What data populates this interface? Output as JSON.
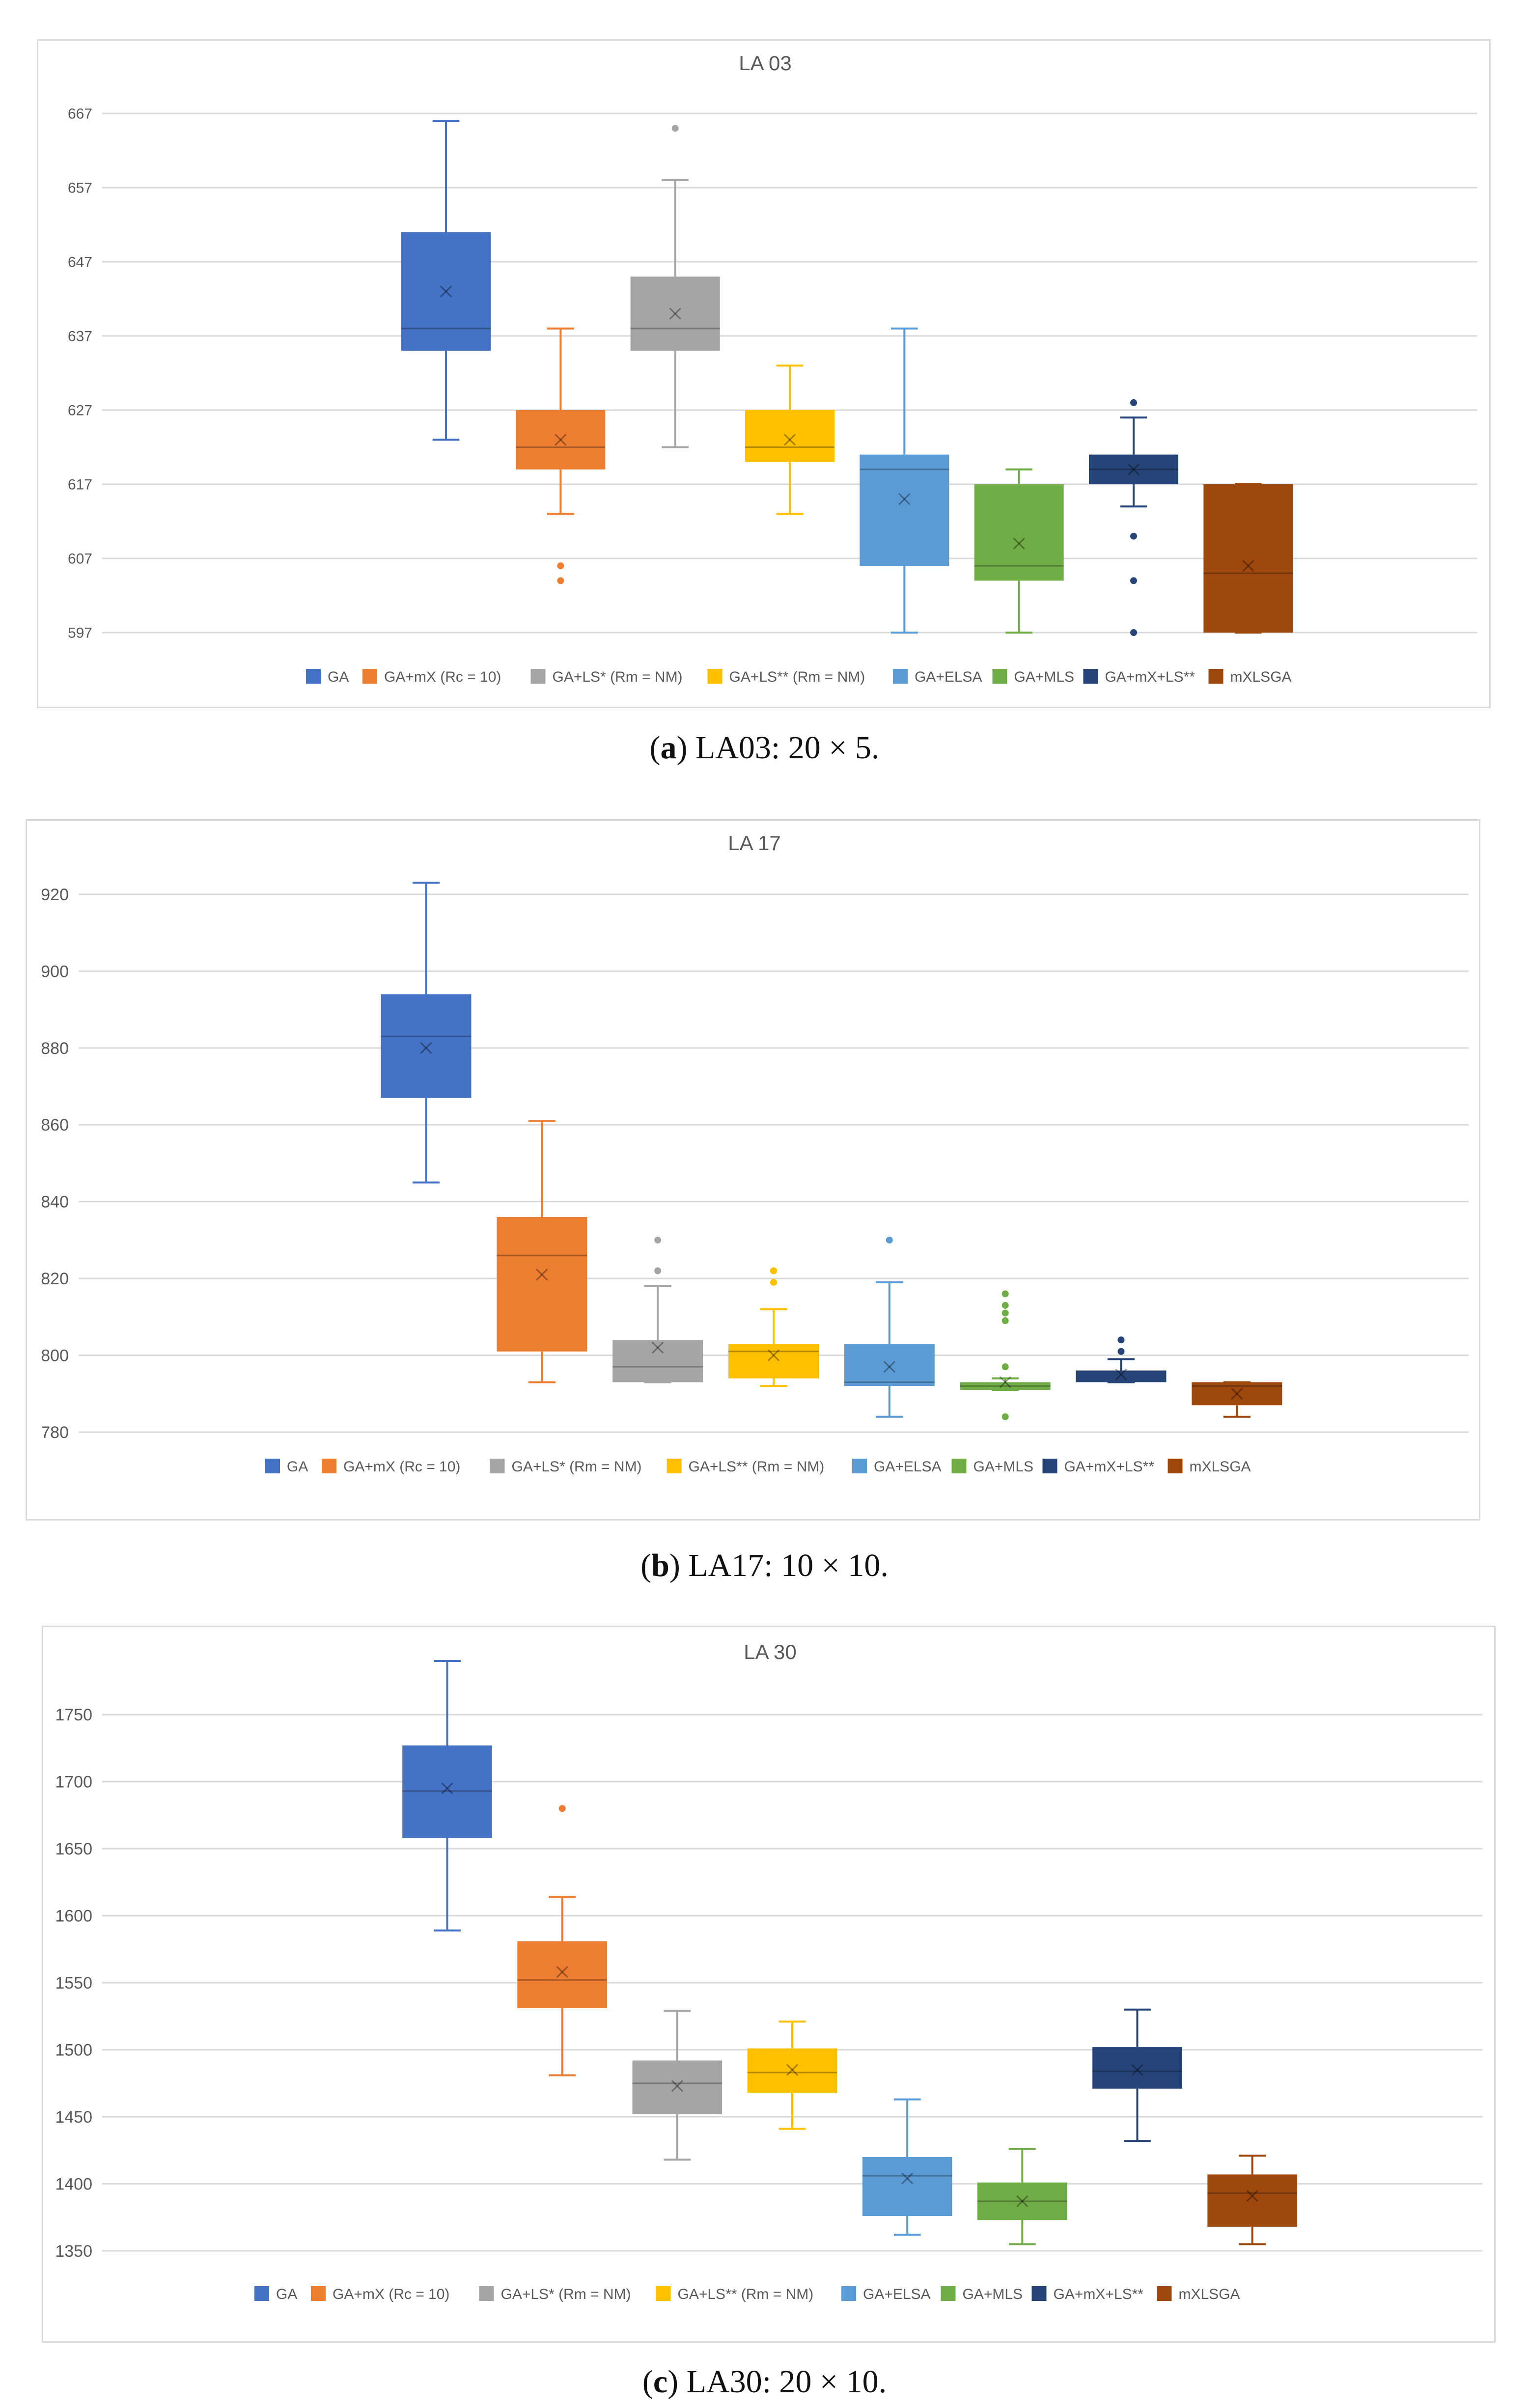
{
  "colors": {
    "GA": "#4472c4",
    "GA+mX": "#ed7d31",
    "GA+LS*": "#a5a5a5",
    "GA+LS**": "#ffc000",
    "GA+ELSA": "#5b9bd5",
    "GA+MLS": "#70ad47",
    "GA+mX+LS**": "#264478",
    "mXLSGA": "#9e480e",
    "grid": "#d9d9d9",
    "text": "#595959"
  },
  "legend_labels": [
    "GA",
    "GA+mX (Rc = 10)",
    "GA+LS* (Rm = NM)",
    "GA+LS** (Rm = NM)",
    "GA+ELSA",
    "GA+MLS",
    "GA+mX+LS**",
    "mXLSGA"
  ],
  "chart_data": [
    {
      "type": "box",
      "title": "LA 03",
      "caption": {
        "letter": "a",
        "text": "LA03: 20 × 5."
      },
      "ylim": [
        597,
        667
      ],
      "yticks": [
        597,
        607,
        617,
        627,
        637,
        647,
        657,
        667
      ],
      "series": [
        {
          "name": "GA",
          "min": 623,
          "q1": 635,
          "median": 638,
          "q3": 651,
          "max": 666,
          "mean": 643,
          "outliers": []
        },
        {
          "name": "GA+mX (Rc = 10)",
          "min": 613,
          "q1": 619,
          "median": 622,
          "q3": 627,
          "max": 638,
          "mean": 623,
          "outliers": [
            606,
            604
          ]
        },
        {
          "name": "GA+LS* (Rm = NM)",
          "min": 622,
          "q1": 635,
          "median": 638,
          "q3": 645,
          "max": 658,
          "mean": 640,
          "outliers": [
            665
          ]
        },
        {
          "name": "GA+LS** (Rm = NM)",
          "min": 613,
          "q1": 620,
          "median": 622,
          "q3": 627,
          "max": 633,
          "mean": 623,
          "outliers": []
        },
        {
          "name": "GA+ELSA",
          "min": 597,
          "q1": 606,
          "median": 619,
          "q3": 621,
          "max": 638,
          "mean": 615,
          "outliers": []
        },
        {
          "name": "GA+MLS",
          "min": 597,
          "q1": 604,
          "median": 606,
          "q3": 617,
          "max": 619,
          "mean": 609,
          "outliers": []
        },
        {
          "name": "GA+mX+LS**",
          "min": 614,
          "q1": 617,
          "median": 619,
          "q3": 621,
          "max": 626,
          "mean": 619,
          "outliers": [
            628,
            610,
            604,
            597
          ]
        },
        {
          "name": "mXLSGA",
          "min": 597,
          "q1": 597,
          "median": 605,
          "q3": 617,
          "max": 617,
          "mean": 606,
          "outliers": []
        }
      ]
    },
    {
      "type": "box",
      "title": "LA 17",
      "caption": {
        "letter": "b",
        "text": "LA17: 10 × 10."
      },
      "ylim": [
        780,
        920
      ],
      "yticks": [
        780,
        800,
        820,
        840,
        860,
        880,
        900,
        920
      ],
      "series": [
        {
          "name": "GA",
          "min": 845,
          "q1": 867,
          "median": 883,
          "q3": 894,
          "max": 923,
          "mean": 880,
          "outliers": []
        },
        {
          "name": "GA+mX (Rc = 10)",
          "min": 793,
          "q1": 801,
          "median": 826,
          "q3": 836,
          "max": 861,
          "mean": 821,
          "outliers": []
        },
        {
          "name": "GA+LS* (Rm = NM)",
          "min": 793,
          "q1": 793,
          "median": 797,
          "q3": 804,
          "max": 818,
          "mean": 802,
          "outliers": [
            830,
            822
          ]
        },
        {
          "name": "GA+LS** (Rm = NM)",
          "min": 792,
          "q1": 794,
          "median": 801,
          "q3": 803,
          "max": 812,
          "mean": 800,
          "outliers": [
            822,
            819
          ]
        },
        {
          "name": "GA+ELSA",
          "min": 784,
          "q1": 792,
          "median": 793,
          "q3": 803,
          "max": 819,
          "mean": 797,
          "outliers": [
            830
          ]
        },
        {
          "name": "GA+MLS",
          "min": 791,
          "q1": 791,
          "median": 792,
          "q3": 793,
          "max": 794,
          "mean": 793,
          "outliers": [
            816,
            813,
            811,
            809,
            797,
            784
          ]
        },
        {
          "name": "GA+mX+LS**",
          "min": 793,
          "q1": 793,
          "median": 796,
          "q3": 796,
          "max": 799,
          "mean": 795,
          "outliers": [
            804,
            801
          ]
        },
        {
          "name": "mXLSGA",
          "min": 784,
          "q1": 787,
          "median": 792,
          "q3": 793,
          "max": 793,
          "mean": 790,
          "outliers": []
        }
      ]
    },
    {
      "type": "box",
      "title": "LA 30",
      "caption": {
        "letter": "c",
        "text": "LA30: 20 × 10."
      },
      "ylim": [
        1350,
        1775
      ],
      "yticks": [
        1350,
        1400,
        1450,
        1500,
        1550,
        1600,
        1650,
        1700,
        1750
      ],
      "series": [
        {
          "name": "GA",
          "min": 1589,
          "q1": 1658,
          "median": 1693,
          "q3": 1727,
          "max": 1790,
          "mean": 1695,
          "outliers": []
        },
        {
          "name": "GA+mX (Rc = 10)",
          "min": 1481,
          "q1": 1531,
          "median": 1552,
          "q3": 1581,
          "max": 1614,
          "mean": 1558,
          "outliers": [
            1680
          ]
        },
        {
          "name": "GA+LS* (Rm = NM)",
          "min": 1418,
          "q1": 1452,
          "median": 1475,
          "q3": 1492,
          "max": 1529,
          "mean": 1473,
          "outliers": []
        },
        {
          "name": "GA+LS** (Rm = NM)",
          "min": 1441,
          "q1": 1468,
          "median": 1483,
          "q3": 1501,
          "max": 1521,
          "mean": 1485,
          "outliers": []
        },
        {
          "name": "GA+ELSA",
          "min": 1362,
          "q1": 1376,
          "median": 1406,
          "q3": 1420,
          "max": 1463,
          "mean": 1404,
          "outliers": []
        },
        {
          "name": "GA+MLS",
          "min": 1355,
          "q1": 1373,
          "median": 1387,
          "q3": 1401,
          "max": 1426,
          "mean": 1387,
          "outliers": []
        },
        {
          "name": "GA+mX+LS**",
          "min": 1432,
          "q1": 1471,
          "median": 1484,
          "q3": 1502,
          "max": 1530,
          "mean": 1485,
          "outliers": []
        },
        {
          "name": "mXLSGA",
          "min": 1355,
          "q1": 1368,
          "median": 1393,
          "q3": 1407,
          "max": 1421,
          "mean": 1391,
          "outliers": []
        }
      ]
    }
  ]
}
